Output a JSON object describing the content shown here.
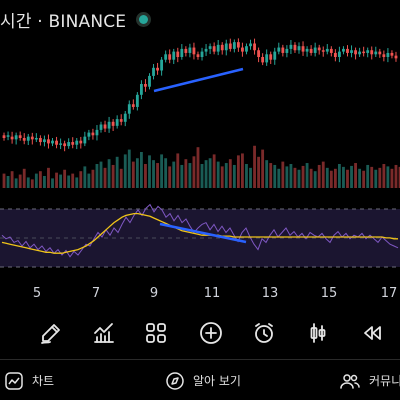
{
  "header": {
    "title": "시간 · BINANCE",
    "status_color": "#26a69a"
  },
  "toolbar": {
    "items": [
      {
        "name": "pencil-icon",
        "label": ""
      },
      {
        "name": "indicators-icon",
        "label": ""
      },
      {
        "name": "grid-icon",
        "label": ""
      },
      {
        "name": "plus-circle-icon",
        "label": ""
      },
      {
        "name": "alarm-clock-icon",
        "label": ""
      },
      {
        "name": "candlestick-icon",
        "label": ""
      },
      {
        "name": "replay-icon",
        "label": ""
      }
    ]
  },
  "nav": {
    "chart_label": "차트",
    "explore_label": "알아 보기",
    "community_label": "커뮤니"
  },
  "colors": {
    "up": "#26a69a",
    "down": "#ef5350",
    "trendline": "#2962ff",
    "rsi": "#7e57c2",
    "rsi_ma": "#f0c419",
    "rsi_band": "#1b1530"
  },
  "chart_data": {
    "type": "candlestick",
    "x_tick_labels": [
      "5",
      "7",
      "9",
      "11",
      "13",
      "15",
      "17"
    ],
    "price_candles": [
      [
        0.2,
        0.22,
        "d"
      ],
      [
        0.22,
        0.21,
        "u"
      ],
      [
        0.21,
        0.19,
        "d"
      ],
      [
        0.19,
        0.22,
        "u"
      ],
      [
        0.22,
        0.2,
        "d"
      ],
      [
        0.2,
        0.18,
        "d"
      ],
      [
        0.18,
        0.21,
        "u"
      ],
      [
        0.21,
        0.19,
        "d"
      ],
      [
        0.19,
        0.2,
        "u"
      ],
      [
        0.2,
        0.17,
        "d"
      ],
      [
        0.17,
        0.19,
        "u"
      ],
      [
        0.19,
        0.16,
        "d"
      ],
      [
        0.16,
        0.18,
        "u"
      ],
      [
        0.18,
        0.15,
        "d"
      ],
      [
        0.15,
        0.16,
        "u"
      ],
      [
        0.16,
        0.14,
        "d"
      ],
      [
        0.14,
        0.17,
        "u"
      ],
      [
        0.17,
        0.15,
        "d"
      ],
      [
        0.15,
        0.18,
        "u"
      ],
      [
        0.18,
        0.16,
        "d"
      ],
      [
        0.16,
        0.21,
        "u"
      ],
      [
        0.21,
        0.24,
        "u"
      ],
      [
        0.24,
        0.22,
        "d"
      ],
      [
        0.22,
        0.26,
        "u"
      ],
      [
        0.26,
        0.3,
        "u"
      ],
      [
        0.3,
        0.27,
        "d"
      ],
      [
        0.27,
        0.32,
        "u"
      ],
      [
        0.32,
        0.29,
        "d"
      ],
      [
        0.29,
        0.34,
        "u"
      ],
      [
        0.34,
        0.32,
        "d"
      ],
      [
        0.32,
        0.38,
        "u"
      ],
      [
        0.38,
        0.45,
        "u"
      ],
      [
        0.45,
        0.43,
        "d"
      ],
      [
        0.43,
        0.52,
        "u"
      ],
      [
        0.52,
        0.6,
        "u"
      ],
      [
        0.6,
        0.58,
        "d"
      ],
      [
        0.58,
        0.66,
        "u"
      ],
      [
        0.66,
        0.72,
        "u"
      ],
      [
        0.72,
        0.7,
        "d"
      ],
      [
        0.7,
        0.78,
        "u"
      ],
      [
        0.78,
        0.82,
        "u"
      ],
      [
        0.82,
        0.78,
        "d"
      ],
      [
        0.78,
        0.84,
        "u"
      ],
      [
        0.84,
        0.8,
        "d"
      ],
      [
        0.8,
        0.86,
        "u"
      ],
      [
        0.86,
        0.83,
        "d"
      ],
      [
        0.83,
        0.87,
        "u"
      ],
      [
        0.87,
        0.82,
        "d"
      ],
      [
        0.82,
        0.8,
        "d"
      ],
      [
        0.8,
        0.84,
        "u"
      ],
      [
        0.84,
        0.86,
        "u"
      ],
      [
        0.86,
        0.88,
        "u"
      ],
      [
        0.88,
        0.84,
        "d"
      ],
      [
        0.84,
        0.89,
        "u"
      ],
      [
        0.89,
        0.85,
        "d"
      ],
      [
        0.85,
        0.9,
        "u"
      ],
      [
        0.9,
        0.86,
        "d"
      ],
      [
        0.86,
        0.91,
        "u"
      ],
      [
        0.91,
        0.87,
        "d"
      ],
      [
        0.87,
        0.84,
        "d"
      ],
      [
        0.84,
        0.88,
        "u"
      ],
      [
        0.88,
        0.9,
        "u"
      ],
      [
        0.9,
        0.85,
        "d"
      ],
      [
        0.85,
        0.8,
        "d"
      ],
      [
        0.8,
        0.76,
        "d"
      ],
      [
        0.76,
        0.82,
        "u"
      ],
      [
        0.82,
        0.78,
        "d"
      ],
      [
        0.78,
        0.84,
        "u"
      ],
      [
        0.84,
        0.87,
        "u"
      ],
      [
        0.87,
        0.83,
        "d"
      ],
      [
        0.83,
        0.86,
        "u"
      ],
      [
        0.86,
        0.89,
        "u"
      ],
      [
        0.89,
        0.85,
        "d"
      ],
      [
        0.85,
        0.88,
        "u"
      ],
      [
        0.88,
        0.84,
        "d"
      ],
      [
        0.84,
        0.86,
        "u"
      ],
      [
        0.86,
        0.83,
        "d"
      ],
      [
        0.83,
        0.87,
        "u"
      ],
      [
        0.87,
        0.85,
        "d"
      ],
      [
        0.85,
        0.84,
        "d"
      ],
      [
        0.84,
        0.86,
        "u"
      ],
      [
        0.86,
        0.83,
        "d"
      ],
      [
        0.83,
        0.8,
        "d"
      ],
      [
        0.8,
        0.84,
        "u"
      ],
      [
        0.84,
        0.86,
        "u"
      ],
      [
        0.86,
        0.83,
        "d"
      ],
      [
        0.83,
        0.85,
        "u"
      ],
      [
        0.85,
        0.82,
        "d"
      ],
      [
        0.82,
        0.84,
        "u"
      ],
      [
        0.84,
        0.83,
        "d"
      ],
      [
        0.83,
        0.85,
        "u"
      ],
      [
        0.85,
        0.82,
        "d"
      ],
      [
        0.82,
        0.84,
        "u"
      ],
      [
        0.84,
        0.82,
        "d"
      ],
      [
        0.82,
        0.8,
        "d"
      ],
      [
        0.8,
        0.83,
        "u"
      ],
      [
        0.83,
        0.81,
        "d"
      ],
      [
        0.81,
        0.79,
        "d"
      ]
    ],
    "volume": [
      0.3,
      0.25,
      0.35,
      0.2,
      0.28,
      0.4,
      0.22,
      0.18,
      0.3,
      0.35,
      0.25,
      0.42,
      0.2,
      0.32,
      0.28,
      0.38,
      0.26,
      0.3,
      0.22,
      0.35,
      0.45,
      0.3,
      0.38,
      0.5,
      0.55,
      0.42,
      0.6,
      0.48,
      0.65,
      0.4,
      0.7,
      0.8,
      0.55,
      0.62,
      0.75,
      0.5,
      0.68,
      0.58,
      0.52,
      0.7,
      0.62,
      0.45,
      0.55,
      0.72,
      0.48,
      0.6,
      0.52,
      0.66,
      0.85,
      0.5,
      0.58,
      0.62,
      0.7,
      0.55,
      0.45,
      0.52,
      0.6,
      0.48,
      0.68,
      0.72,
      0.5,
      0.42,
      0.88,
      0.65,
      0.8,
      0.58,
      0.52,
      0.48,
      0.4,
      0.55,
      0.45,
      0.5,
      0.42,
      0.38,
      0.46,
      0.52,
      0.4,
      0.35,
      0.48,
      0.55,
      0.42,
      0.36,
      0.4,
      0.5,
      0.44,
      0.38,
      0.46,
      0.52,
      0.4,
      0.36,
      0.48,
      0.44,
      0.38,
      0.42,
      0.5,
      0.45,
      0.4,
      0.48,
      0.44,
      0.42
    ],
    "rsi": [
      0.52,
      0.48,
      0.5,
      0.44,
      0.46,
      0.4,
      0.45,
      0.38,
      0.42,
      0.36,
      0.4,
      0.34,
      0.38,
      0.32,
      0.36,
      0.3,
      0.35,
      0.28,
      0.34,
      0.3,
      0.36,
      0.42,
      0.4,
      0.48,
      0.55,
      0.5,
      0.58,
      0.52,
      0.6,
      0.55,
      0.64,
      0.72,
      0.66,
      0.74,
      0.8,
      0.74,
      0.82,
      0.86,
      0.78,
      0.84,
      0.8,
      0.72,
      0.76,
      0.68,
      0.74,
      0.66,
      0.7,
      0.62,
      0.55,
      0.6,
      0.64,
      0.66,
      0.58,
      0.64,
      0.56,
      0.62,
      0.55,
      0.6,
      0.52,
      0.45,
      0.55,
      0.6,
      0.5,
      0.42,
      0.36,
      0.48,
      0.44,
      0.52,
      0.58,
      0.5,
      0.55,
      0.6,
      0.52,
      0.56,
      0.5,
      0.54,
      0.48,
      0.55,
      0.52,
      0.5,
      0.54,
      0.48,
      0.44,
      0.52,
      0.56,
      0.5,
      0.54,
      0.48,
      0.52,
      0.5,
      0.54,
      0.48,
      0.52,
      0.48,
      0.44,
      0.5,
      0.46,
      0.42,
      0.4,
      0.38
    ],
    "rsi_ma": [
      0.44,
      0.43,
      0.42,
      0.41,
      0.4,
      0.39,
      0.38,
      0.37,
      0.36,
      0.35,
      0.34,
      0.33,
      0.33,
      0.32,
      0.32,
      0.32,
      0.33,
      0.34,
      0.35,
      0.36,
      0.38,
      0.4,
      0.43,
      0.46,
      0.5,
      0.54,
      0.58,
      0.62,
      0.66,
      0.69,
      0.72,
      0.74,
      0.75,
      0.76,
      0.76,
      0.75,
      0.74,
      0.73,
      0.71,
      0.69,
      0.67,
      0.65,
      0.63,
      0.61,
      0.59,
      0.57,
      0.56,
      0.55,
      0.54,
      0.53,
      0.52,
      0.52,
      0.52,
      0.52,
      0.52,
      0.51,
      0.51,
      0.51,
      0.5,
      0.5,
      0.5,
      0.5,
      0.5,
      0.5,
      0.5,
      0.5,
      0.5,
      0.5,
      0.5,
      0.5,
      0.5,
      0.5,
      0.5,
      0.5,
      0.5,
      0.5,
      0.5,
      0.5,
      0.5,
      0.5,
      0.5,
      0.5,
      0.5,
      0.5,
      0.5,
      0.5,
      0.5,
      0.5,
      0.5,
      0.5,
      0.5,
      0.5,
      0.5,
      0.5,
      0.5,
      0.5,
      0.49,
      0.49,
      0.48,
      0.48
    ]
  }
}
